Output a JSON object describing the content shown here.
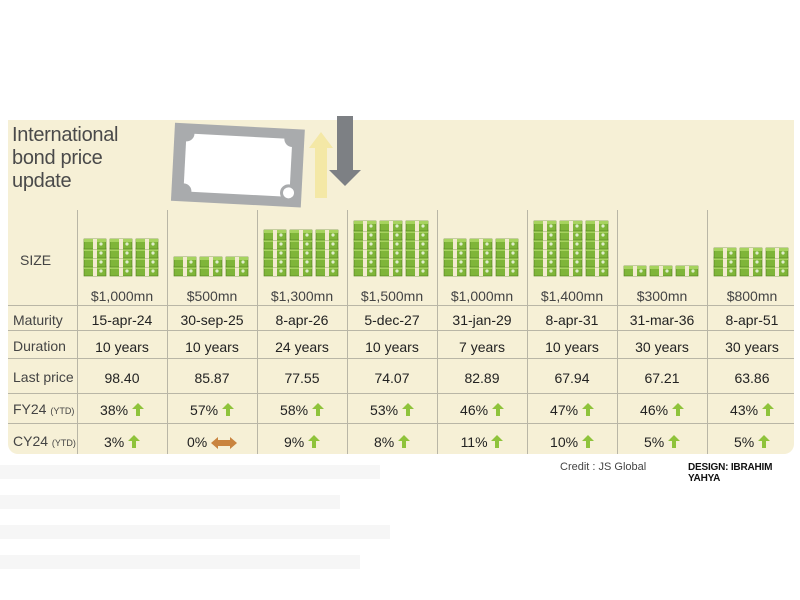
{
  "title_lines": [
    "International",
    "bond price",
    "update"
  ],
  "row_labels": {
    "size": "SIZE",
    "maturity": "Maturity",
    "duration": "Duration",
    "last_price": "Last price",
    "fy24": "FY24",
    "fy24_suffix": "(YTD)",
    "cy24": "CY24",
    "cy24_suffix": "(YTD)"
  },
  "chart_data": {
    "type": "table",
    "columns": [
      {
        "size": "$1,000mn",
        "size_mn": 1000,
        "maturity": "15-apr-24",
        "duration": "10 years",
        "last_price": "98.40",
        "fy24": "38%",
        "fy24_dir": "up",
        "cy24": "3%",
        "cy24_dir": "up"
      },
      {
        "size": "$500mn",
        "size_mn": 500,
        "maturity": "30-sep-25",
        "duration": "10 years",
        "last_price": "85.87",
        "fy24": "57%",
        "fy24_dir": "up",
        "cy24": "0%",
        "cy24_dir": "flat"
      },
      {
        "size": "$1,300mn",
        "size_mn": 1300,
        "maturity": "8-apr-26",
        "duration": "24 years",
        "last_price": "77.55",
        "fy24": "58%",
        "fy24_dir": "up",
        "cy24": "9%",
        "cy24_dir": "up"
      },
      {
        "size": "$1,500mn",
        "size_mn": 1500,
        "maturity": "5-dec-27",
        "duration": "10 years",
        "last_price": "74.07",
        "fy24": "53%",
        "fy24_dir": "up",
        "cy24": "8%",
        "cy24_dir": "up"
      },
      {
        "size": "$1,000mn",
        "size_mn": 1000,
        "maturity": "31-jan-29",
        "duration": "7 years",
        "last_price": "82.89",
        "fy24": "46%",
        "fy24_dir": "up",
        "cy24": "11%",
        "cy24_dir": "up"
      },
      {
        "size": "$1,400mn",
        "size_mn": 1400,
        "maturity": "8-apr-31",
        "duration": "10 years",
        "last_price": "67.94",
        "fy24": "47%",
        "fy24_dir": "up",
        "cy24": "10%",
        "cy24_dir": "up"
      },
      {
        "size": "$300mn",
        "size_mn": 300,
        "maturity": "31-mar-36",
        "duration": "30 years",
        "last_price": "67.21",
        "fy24": "46%",
        "fy24_dir": "up",
        "cy24": "5%",
        "cy24_dir": "up"
      },
      {
        "size": "$800mn",
        "size_mn": 800,
        "maturity": "8-apr-51",
        "duration": "30 years",
        "last_price": "63.86",
        "fy24": "43%",
        "fy24_dir": "up",
        "cy24": "5%",
        "cy24_dir": "up"
      }
    ]
  },
  "credit": "Credit : JS Global",
  "design": "DESIGN: IBRAHIM YAHYA",
  "colors": {
    "board": "#f6f0d6",
    "money": "#7fb539",
    "arrow_up": "#8fc33b",
    "arrow_flat": "#c9843f",
    "grid": "#b9b6a6"
  },
  "icons": {
    "size_row": "money-stack-icon",
    "up": "arrow-up-icon",
    "flat": "arrow-left-right-icon",
    "banner": "banknote-icon"
  }
}
